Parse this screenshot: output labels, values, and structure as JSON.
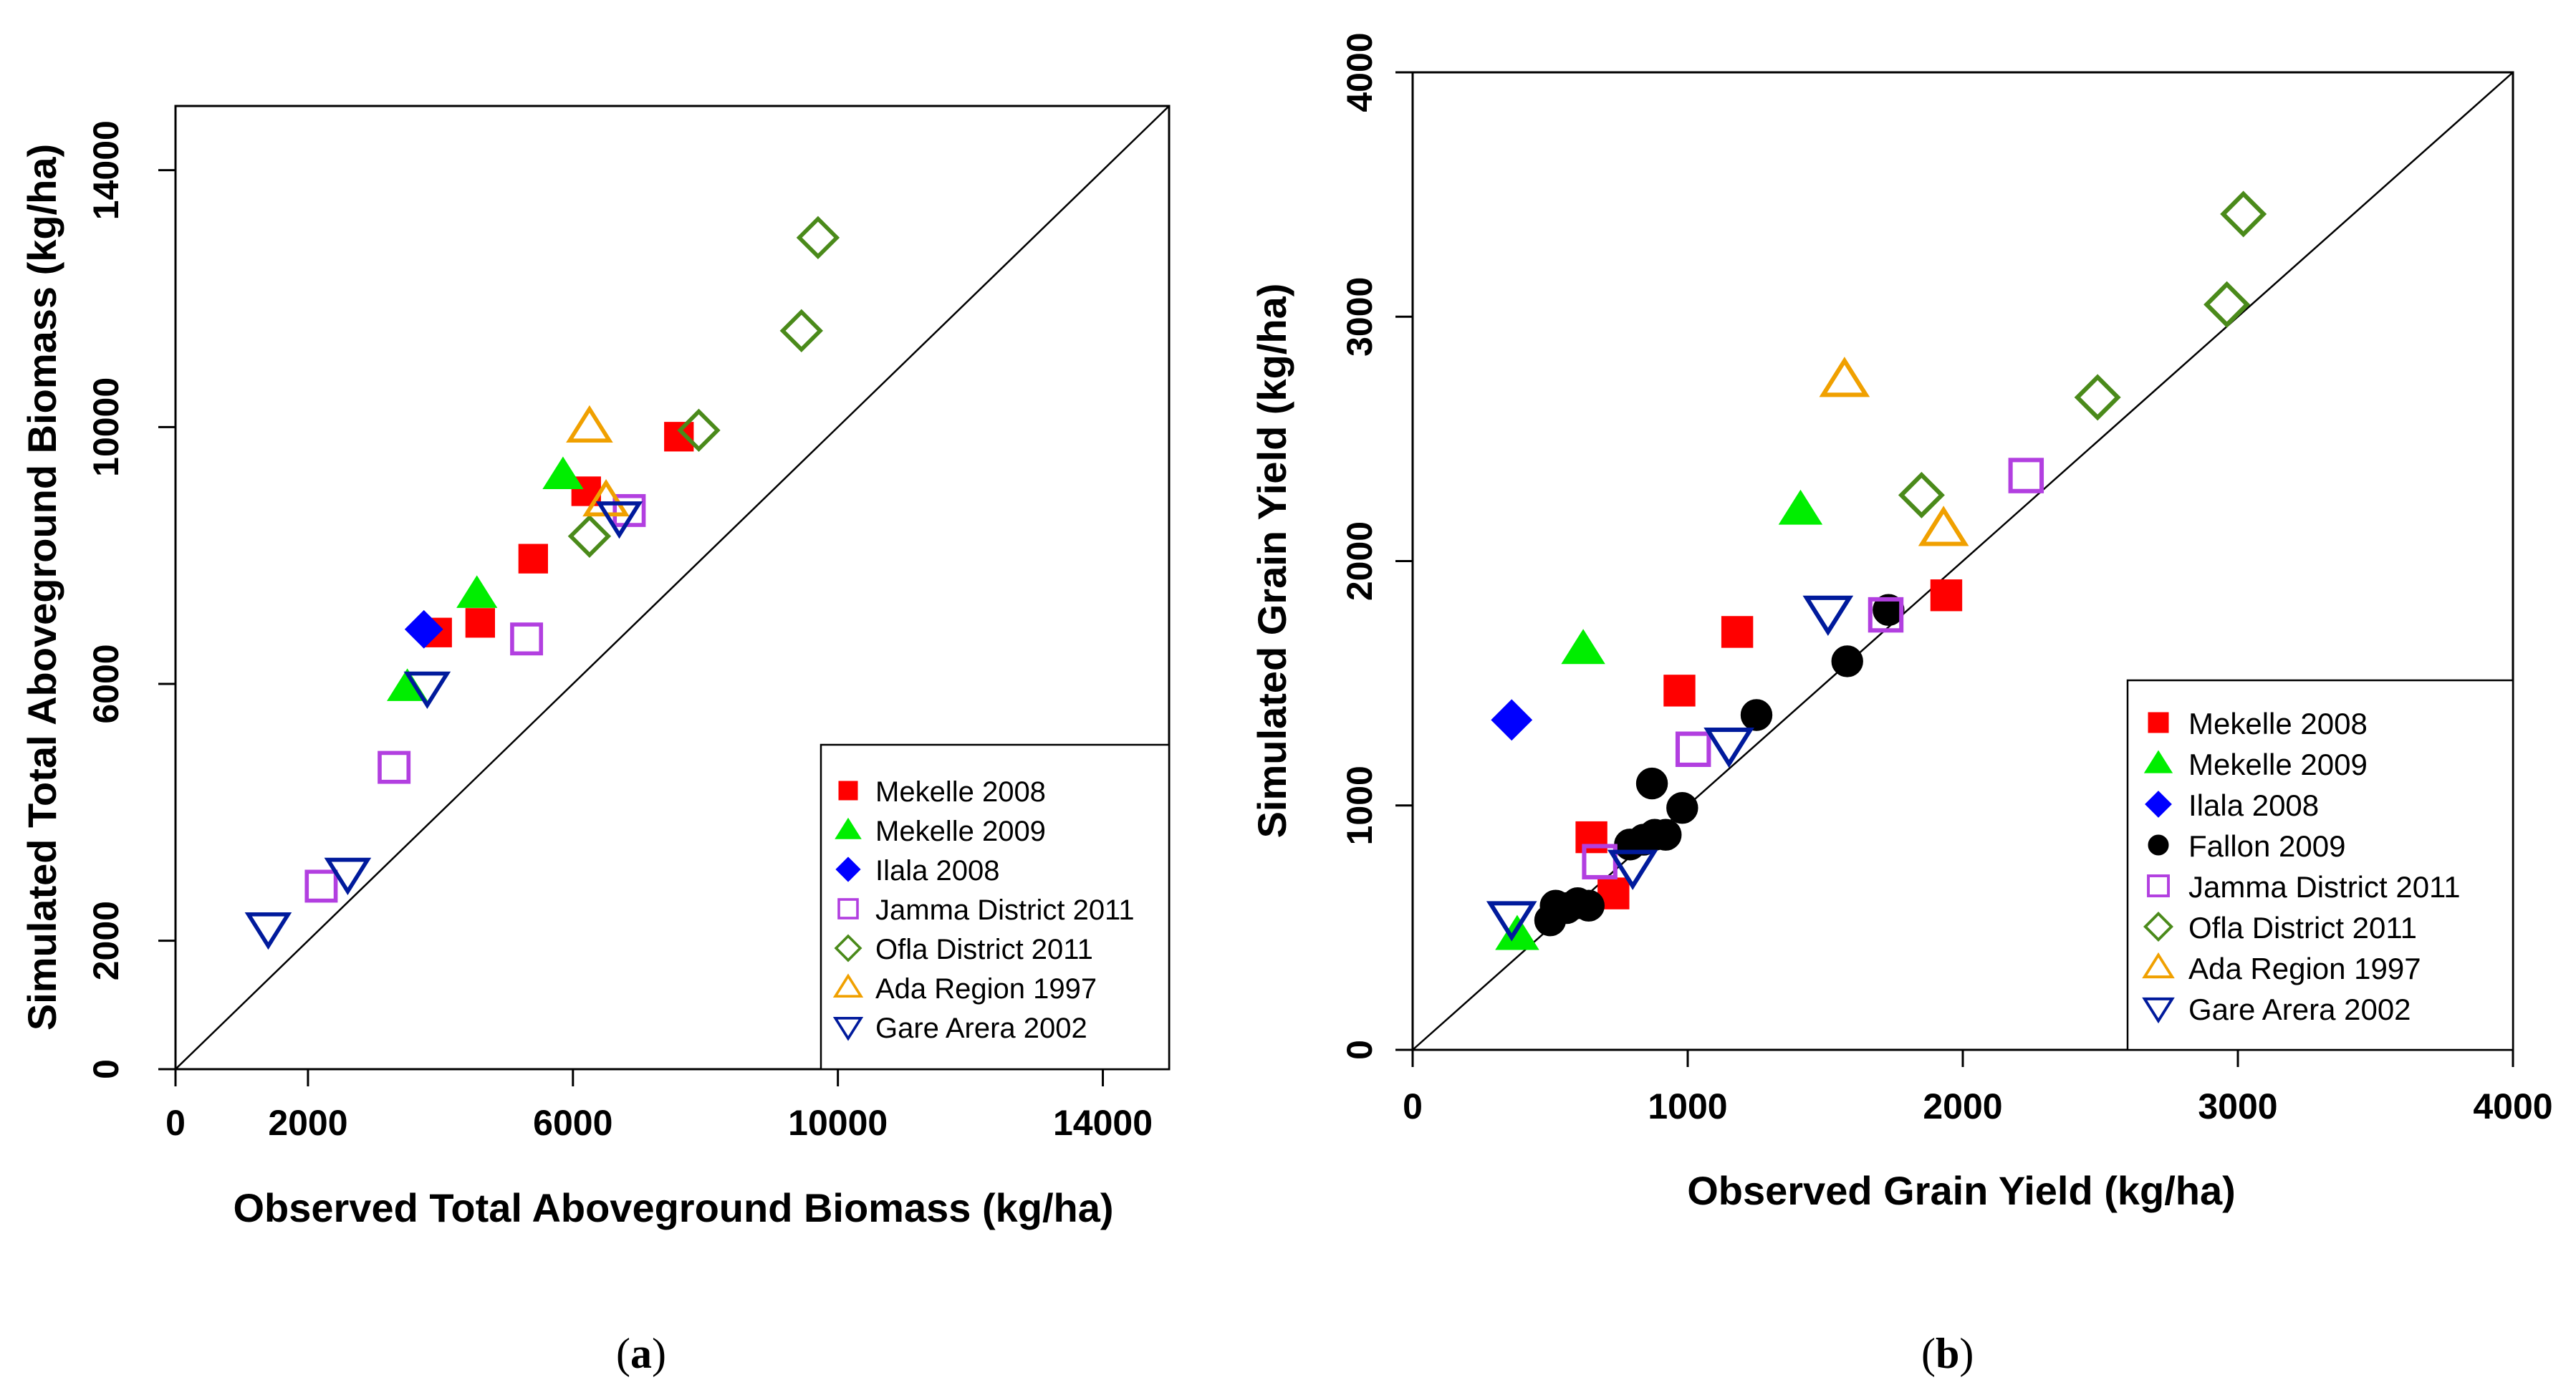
{
  "chart_data": [
    {
      "type": "scatter",
      "panel_label_prefix": "(",
      "panel_letter": "a",
      "panel_label_suffix": ")",
      "xlabel": "Observed Total Aboveground Biomass (kg/ha)",
      "ylabel": "Simulated Total Aboveground Biomass (kg/ha)",
      "xlim": [
        0,
        15000
      ],
      "ylim": [
        0,
        15000
      ],
      "xticks": [
        0,
        2000,
        6000,
        10000,
        14000
      ],
      "yticks": [
        0,
        2000,
        6000,
        10000,
        14000
      ],
      "one_to_one_line": true,
      "legend_position": "bottom-right",
      "series": [
        {
          "name": "Mekelle 2008",
          "marker": "square-filled",
          "color": "#ff0000",
          "points": [
            [
              3950,
              6800
            ],
            [
              4600,
              6950
            ],
            [
              5400,
              7950
            ],
            [
              6200,
              9000
            ],
            [
              7600,
              9850
            ]
          ]
        },
        {
          "name": "Mekelle 2009",
          "marker": "triangle-filled",
          "color": "#00ee00",
          "points": [
            [
              3500,
              5950
            ],
            [
              4550,
              7400
            ],
            [
              5850,
              9250
            ]
          ]
        },
        {
          "name": "Ilala 2008",
          "marker": "diamond-filled",
          "color": "#0000ff",
          "points": [
            [
              3750,
              6850
            ]
          ]
        },
        {
          "name": "Jamma District 2011",
          "marker": "square-open",
          "color": "#b23fe0",
          "points": [
            [
              2200,
              2850
            ],
            [
              3300,
              4700
            ],
            [
              5300,
              6700
            ],
            [
              6850,
              8700
            ]
          ]
        },
        {
          "name": "Ofla District 2011",
          "marker": "diamond-open",
          "color": "#4a8a1a",
          "points": [
            [
              6250,
              8300
            ],
            [
              7900,
              9950
            ],
            [
              9450,
              11500
            ],
            [
              9700,
              12950
            ]
          ]
        },
        {
          "name": "Ada Region 1997",
          "marker": "triangle-open",
          "color": "#f0a000",
          "points": [
            [
              6250,
              10000
            ],
            [
              6500,
              8850
            ]
          ]
        },
        {
          "name": "Gare Arera 2002",
          "marker": "triangle-down-open",
          "color": "#001a9c",
          "points": [
            [
              1400,
              2200
            ],
            [
              2600,
              3050
            ],
            [
              3800,
              5950
            ],
            [
              6700,
              8600
            ]
          ]
        }
      ]
    },
    {
      "type": "scatter",
      "panel_label_prefix": "(",
      "panel_letter": "b",
      "panel_label_suffix": ")",
      "xlabel": "Observed Grain Yield (kg/ha)",
      "ylabel": "Simulated Grain Yield (kg/ha)",
      "xlim": [
        0,
        4000
      ],
      "ylim": [
        0,
        4000
      ],
      "xticks": [
        0,
        1000,
        2000,
        3000,
        4000
      ],
      "yticks": [
        0,
        1000,
        2000,
        3000,
        4000
      ],
      "one_to_one_line": true,
      "legend_position": "bottom-right",
      "series": [
        {
          "name": "Mekelle 2008",
          "marker": "square-filled",
          "color": "#ff0000",
          "points": [
            [
              650,
              870
            ],
            [
              730,
              640
            ],
            [
              970,
              1470
            ],
            [
              1180,
              1710
            ],
            [
              1940,
              1860
            ]
          ]
        },
        {
          "name": "Mekelle 2009",
          "marker": "triangle-filled",
          "color": "#00ee00",
          "points": [
            [
              380,
              470
            ],
            [
              620,
              1640
            ],
            [
              1410,
              2210
            ]
          ]
        },
        {
          "name": "Ilala 2008",
          "marker": "diamond-filled",
          "color": "#0000ff",
          "points": [
            [
              360,
              1350
            ]
          ]
        },
        {
          "name": "Fallon 2009",
          "marker": "circle-filled",
          "color": "#000000",
          "points": [
            [
              500,
              530
            ],
            [
              520,
              590
            ],
            [
              560,
              580
            ],
            [
              600,
              600
            ],
            [
              640,
              590
            ],
            [
              790,
              840
            ],
            [
              840,
              860
            ],
            [
              870,
              1090
            ],
            [
              880,
              880
            ],
            [
              920,
              880
            ],
            [
              980,
              990
            ],
            [
              1250,
              1370
            ],
            [
              1580,
              1590
            ],
            [
              1730,
              1800
            ]
          ]
        },
        {
          "name": "Jamma District 2011",
          "marker": "square-open",
          "color": "#b23fe0",
          "points": [
            [
              680,
              770
            ],
            [
              1020,
              1230
            ],
            [
              1720,
              1780
            ],
            [
              2230,
              2350
            ]
          ]
        },
        {
          "name": "Ofla District 2011",
          "marker": "diamond-open",
          "color": "#4a8a1a",
          "points": [
            [
              1850,
              2270
            ],
            [
              2490,
              2670
            ],
            [
              2960,
              3050
            ],
            [
              3020,
              3420
            ]
          ]
        },
        {
          "name": "Ada Region 1997",
          "marker": "triangle-open",
          "color": "#f0a000",
          "points": [
            [
              1570,
              2740
            ],
            [
              1930,
              2130
            ]
          ]
        },
        {
          "name": "Gare Arera 2002",
          "marker": "triangle-down-open",
          "color": "#001a9c",
          "points": [
            [
              360,
              540
            ],
            [
              800,
              750
            ],
            [
              1150,
              1250
            ],
            [
              1510,
              1790
            ]
          ]
        }
      ]
    }
  ]
}
